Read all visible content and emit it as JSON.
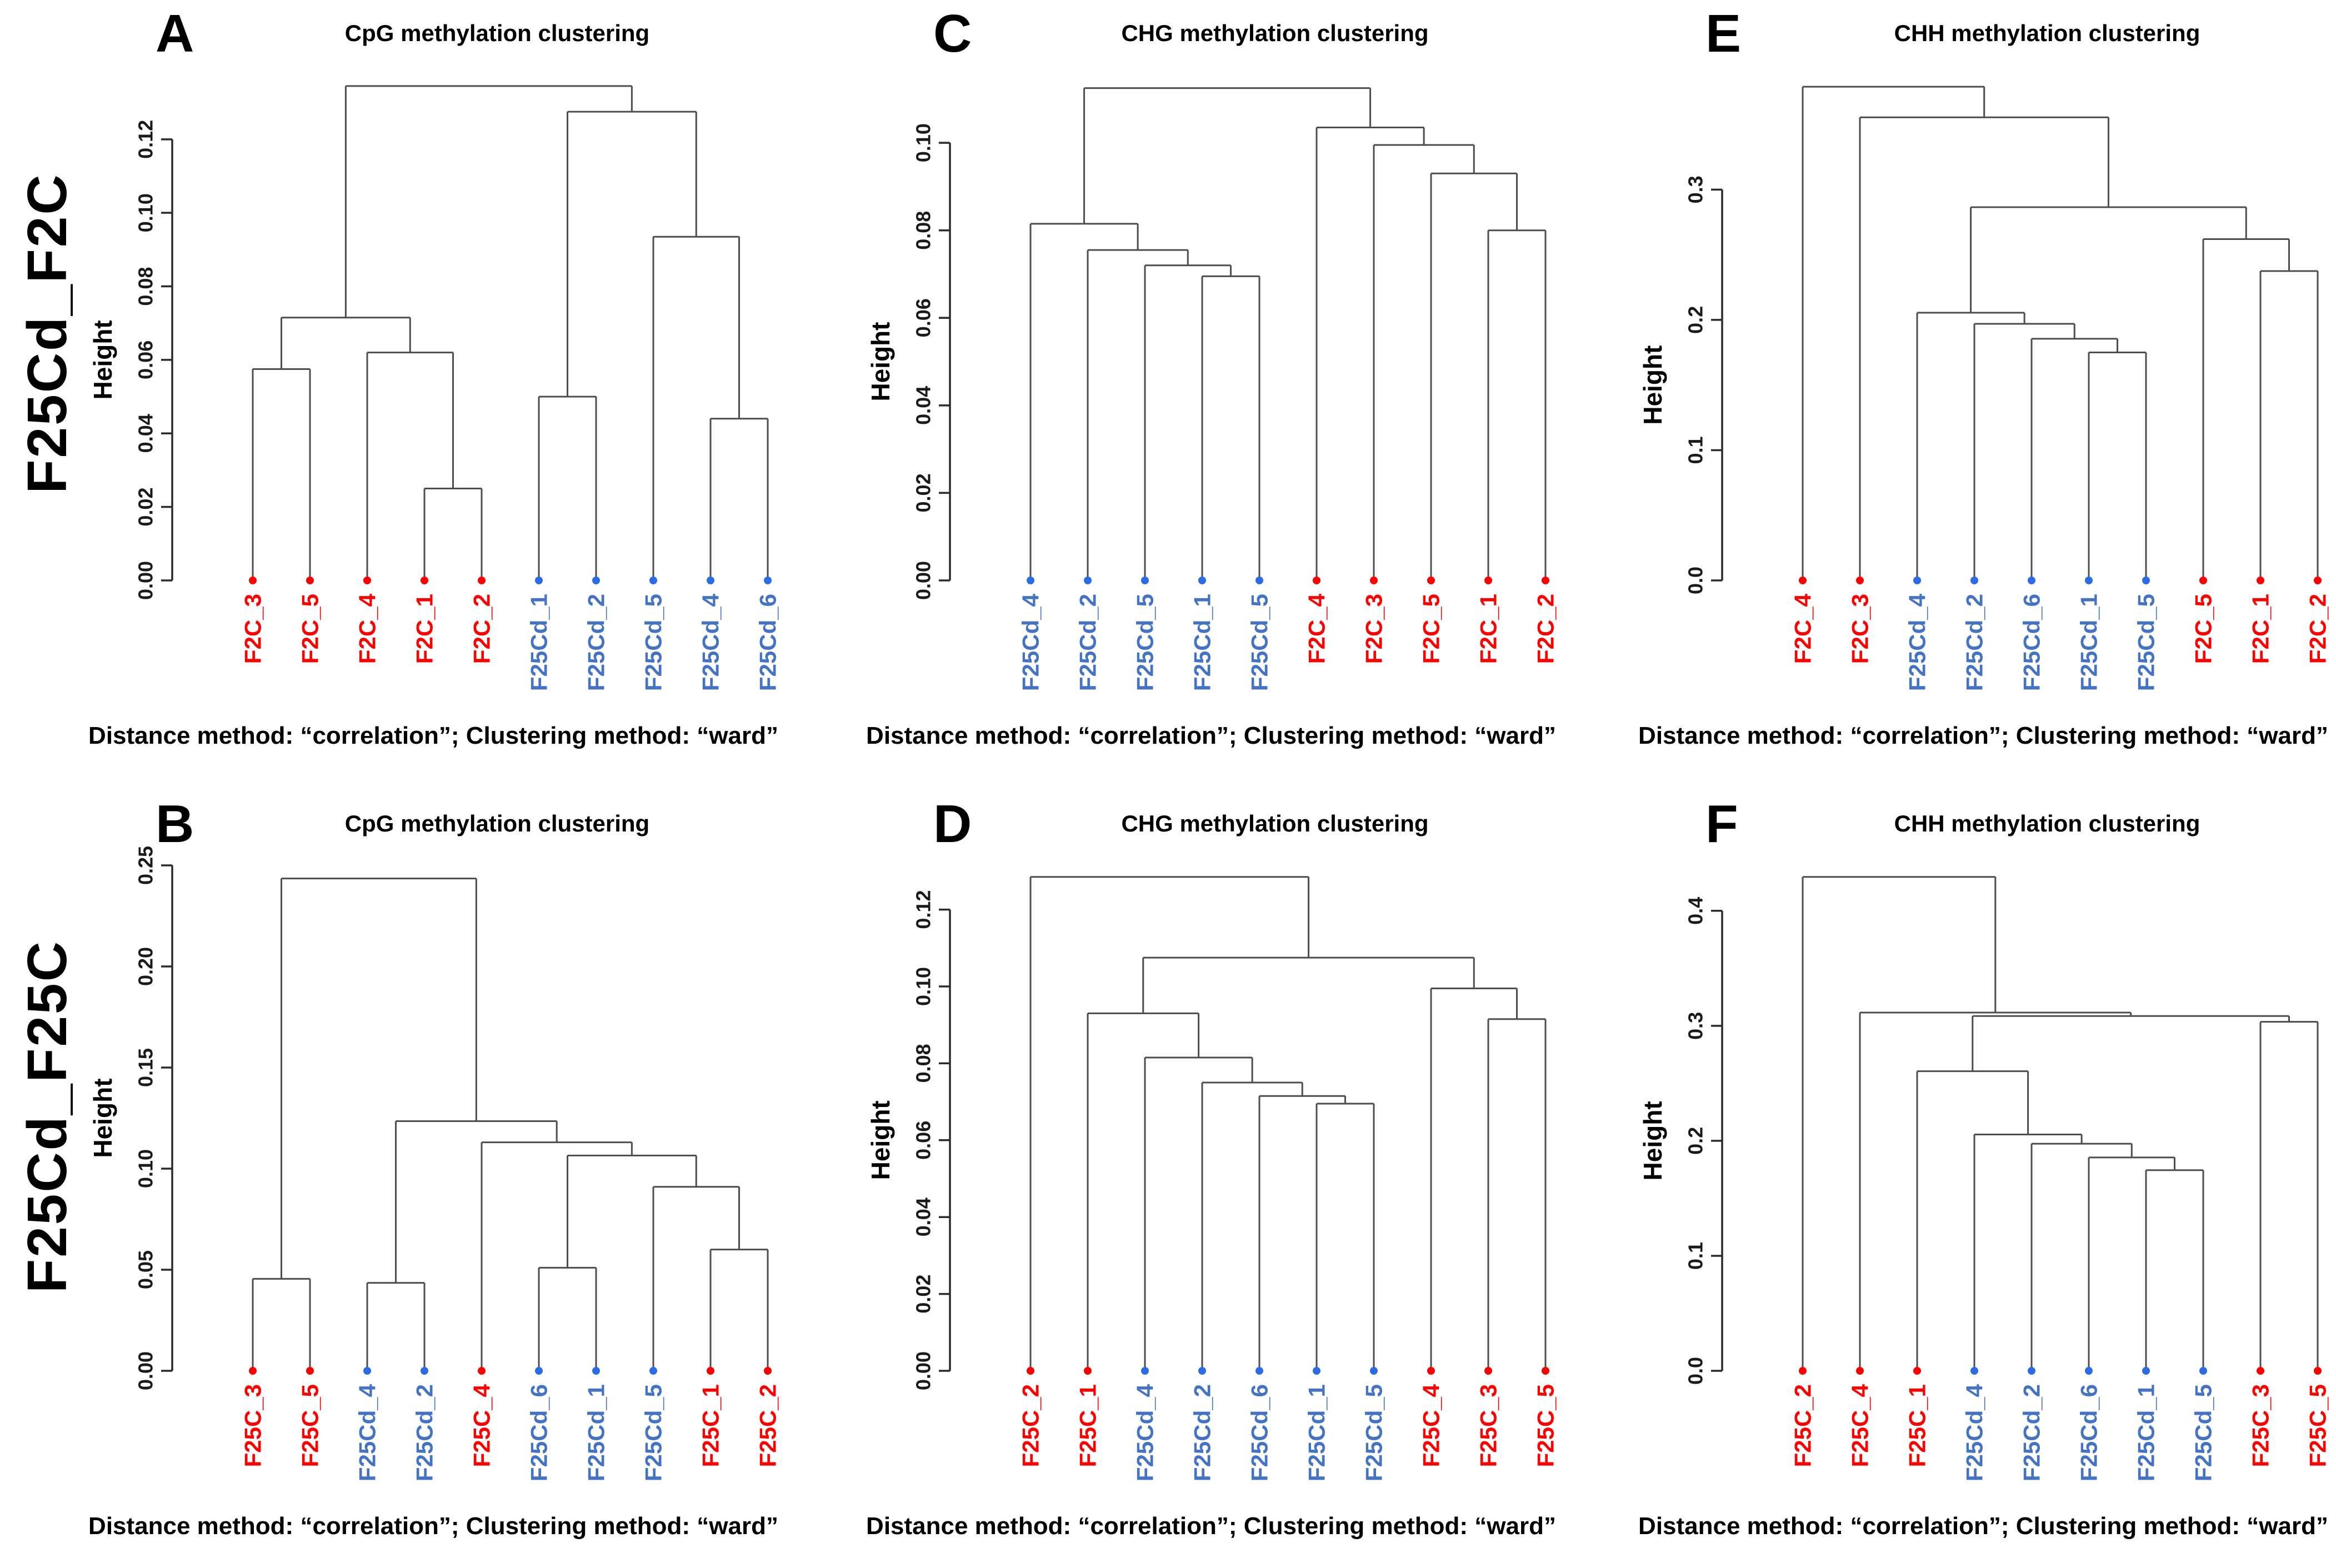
{
  "figure": {
    "rows": [
      {
        "label": "F25Cd_F2C"
      },
      {
        "label": "F25Cd_F25C"
      }
    ],
    "palette": {
      "red": {
        "text": "#FF0000",
        "dot": "#FF0000"
      },
      "blue": {
        "text": "#4472C4",
        "dot": "#2B6BE8"
      }
    },
    "line_color": "#4D4D4D",
    "axis_color": "#2B2B2B"
  },
  "chart_data": [
    {
      "type": "dendrogram",
      "panel_letter": "A",
      "title": "CpG methylation clustering",
      "caption": "Distance method: “correlation”; Clustering method: “ward”",
      "ylabel": "Height",
      "ymax": 0.1375,
      "yticks": [
        {
          "v": 0.0,
          "label": "0.00"
        },
        {
          "v": 0.02,
          "label": "0.02"
        },
        {
          "v": 0.04,
          "label": "0.04"
        },
        {
          "v": 0.06,
          "label": "0.06"
        },
        {
          "v": 0.08,
          "label": "0.08"
        },
        {
          "v": 0.1,
          "label": "0.10"
        },
        {
          "v": 0.12,
          "label": "0.12"
        }
      ],
      "leaves": [
        {
          "label": "F2C_3",
          "g": "red"
        },
        {
          "label": "F2C_5",
          "g": "red"
        },
        {
          "label": "F2C_4",
          "g": "red"
        },
        {
          "label": "F2C_1",
          "g": "red"
        },
        {
          "label": "F2C_2",
          "g": "red"
        },
        {
          "label": "F25Cd_1",
          "g": "blue"
        },
        {
          "label": "F25Cd_2",
          "g": "blue"
        },
        {
          "label": "F25Cd_5",
          "g": "blue"
        },
        {
          "label": "F25Cd_4",
          "g": "blue"
        },
        {
          "label": "F25Cd_6",
          "g": "blue"
        }
      ],
      "tree": {
        "h": 0.1345,
        "c": [
          {
            "h": 0.0715,
            "c": [
              {
                "h": 0.0575,
                "c": [
                  {
                    "i": 0
                  },
                  {
                    "i": 1
                  }
                ]
              },
              {
                "h": 0.062,
                "c": [
                  {
                    "i": 2
                  },
                  {
                    "h": 0.025,
                    "c": [
                      {
                        "i": 3
                      },
                      {
                        "i": 4
                      }
                    ]
                  }
                ]
              }
            ]
          },
          {
            "h": 0.1275,
            "c": [
              {
                "h": 0.05,
                "c": [
                  {
                    "i": 5
                  },
                  {
                    "i": 6
                  }
                ]
              },
              {
                "h": 0.0935,
                "c": [
                  {
                    "i": 7
                  },
                  {
                    "h": 0.044,
                    "c": [
                      {
                        "i": 8
                      },
                      {
                        "i": 9
                      }
                    ]
                  }
                ]
              }
            ]
          }
        ]
      }
    },
    {
      "type": "dendrogram",
      "panel_letter": "C",
      "title": "CHG methylation clustering",
      "caption": "Distance method: “correlation”; Clustering method: “ward”",
      "ylabel": "Height",
      "ymax": 0.1155,
      "yticks": [
        {
          "v": 0.0,
          "label": "0.00"
        },
        {
          "v": 0.02,
          "label": "0.02"
        },
        {
          "v": 0.04,
          "label": "0.04"
        },
        {
          "v": 0.06,
          "label": "0.06"
        },
        {
          "v": 0.08,
          "label": "0.08"
        },
        {
          "v": 0.1,
          "label": "0.10"
        }
      ],
      "leaves": [
        {
          "label": "F25Cd_4",
          "g": "blue"
        },
        {
          "label": "F25Cd_2",
          "g": "blue"
        },
        {
          "label": "F25Cd_5",
          "g": "blue"
        },
        {
          "label": "F25Cd_1",
          "g": "blue"
        },
        {
          "label": "F25Cd_5",
          "g": "blue"
        },
        {
          "label": "F2C_4",
          "g": "red"
        },
        {
          "label": "F2C_3",
          "g": "red"
        },
        {
          "label": "F2C_5",
          "g": "red"
        },
        {
          "label": "F2C_1",
          "g": "red"
        },
        {
          "label": "F2C_2",
          "g": "red"
        }
      ],
      "tree": {
        "h": 0.1125,
        "c": [
          {
            "h": 0.0815,
            "c": [
              {
                "i": 0
              },
              {
                "h": 0.0755,
                "c": [
                  {
                    "i": 1
                  },
                  {
                    "h": 0.072,
                    "c": [
                      {
                        "i": 2
                      },
                      {
                        "h": 0.0695,
                        "c": [
                          {
                            "i": 3
                          },
                          {
                            "i": 4
                          }
                        ]
                      }
                    ]
                  }
                ]
              }
            ]
          },
          {
            "h": 0.1035,
            "c": [
              {
                "i": 5
              },
              {
                "h": 0.0995,
                "c": [
                  {
                    "i": 6
                  },
                  {
                    "h": 0.093,
                    "c": [
                      {
                        "i": 7
                      },
                      {
                        "h": 0.08,
                        "c": [
                          {
                            "i": 8
                          },
                          {
                            "i": 9
                          }
                        ]
                      }
                    ]
                  }
                ]
              }
            ]
          }
        ]
      }
    },
    {
      "type": "dendrogram",
      "panel_letter": "E",
      "title": "CHH methylation clustering",
      "caption": "Distance method: “correlation”; Clustering method: “ward”",
      "ylabel": "Height",
      "ymax": 0.388,
      "yticks": [
        {
          "v": 0.0,
          "label": "0.0"
        },
        {
          "v": 0.1,
          "label": "0.1"
        },
        {
          "v": 0.2,
          "label": "0.2"
        },
        {
          "v": 0.3,
          "label": "0.3"
        }
      ],
      "leaves": [
        {
          "label": "F2C_4",
          "g": "red"
        },
        {
          "label": "F2C_3",
          "g": "red"
        },
        {
          "label": "F25Cd_4",
          "g": "blue"
        },
        {
          "label": "F25Cd_2",
          "g": "blue"
        },
        {
          "label": "F25Cd_6",
          "g": "blue"
        },
        {
          "label": "F25Cd_1",
          "g": "blue"
        },
        {
          "label": "F25Cd_5",
          "g": "blue"
        },
        {
          "label": "F2C_5",
          "g": "red"
        },
        {
          "label": "F2C_1",
          "g": "red"
        },
        {
          "label": "F2C_2",
          "g": "red"
        }
      ],
      "tree": {
        "h": 0.379,
        "c": [
          {
            "i": 0
          },
          {
            "h": 0.3555,
            "c": [
              {
                "i": 1
              },
              {
                "h": 0.2865,
                "c": [
                  {
                    "h": 0.2055,
                    "c": [
                      {
                        "i": 2
                      },
                      {
                        "h": 0.197,
                        "c": [
                          {
                            "i": 3
                          },
                          {
                            "h": 0.1855,
                            "c": [
                              {
                                "i": 4
                              },
                              {
                                "h": 0.175,
                                "c": [
                                  {
                                    "i": 5
                                  },
                                  {
                                    "i": 6
                                  }
                                ]
                              }
                            ]
                          }
                        ]
                      }
                    ]
                  },
                  {
                    "h": 0.262,
                    "c": [
                      {
                        "i": 7
                      },
                      {
                        "h": 0.2375,
                        "c": [
                          {
                            "i": 8
                          },
                          {
                            "i": 9
                          }
                        ]
                      }
                    ]
                  }
                ]
              }
            ]
          }
        ]
      }
    },
    {
      "type": "dendrogram",
      "panel_letter": "B",
      "title": "CpG methylation clustering",
      "caption": "Distance method: “correlation”; Clustering method: “ward”",
      "ylabel": "Height",
      "ymax": 0.25,
      "yticks": [
        {
          "v": 0.0,
          "label": "0.00"
        },
        {
          "v": 0.05,
          "label": "0.05"
        },
        {
          "v": 0.1,
          "label": "0.10"
        },
        {
          "v": 0.15,
          "label": "0.15"
        },
        {
          "v": 0.2,
          "label": "0.20"
        },
        {
          "v": 0.25,
          "label": "0.25"
        }
      ],
      "leaves": [
        {
          "label": "F25C_3",
          "g": "red"
        },
        {
          "label": "F25C_5",
          "g": "red"
        },
        {
          "label": "F25Cd_4",
          "g": "blue"
        },
        {
          "label": "F25Cd_2",
          "g": "blue"
        },
        {
          "label": "F25C_4",
          "g": "red"
        },
        {
          "label": "F25Cd_6",
          "g": "blue"
        },
        {
          "label": "F25Cd_1",
          "g": "blue"
        },
        {
          "label": "F25Cd_5",
          "g": "blue"
        },
        {
          "label": "F25C_1",
          "g": "red"
        },
        {
          "label": "F25C_2",
          "g": "red"
        }
      ],
      "tree": {
        "h": 0.2435,
        "c": [
          {
            "h": 0.0455,
            "c": [
              {
                "i": 0
              },
              {
                "i": 1
              }
            ]
          },
          {
            "h": 0.1235,
            "c": [
              {
                "h": 0.0435,
                "c": [
                  {
                    "i": 2
                  },
                  {
                    "i": 3
                  }
                ]
              },
              {
                "h": 0.113,
                "c": [
                  {
                    "i": 4
                  },
                  {
                    "h": 0.1065,
                    "c": [
                      {
                        "h": 0.051,
                        "c": [
                          {
                            "i": 5
                          },
                          {
                            "i": 6
                          }
                        ]
                      },
                      {
                        "h": 0.091,
                        "c": [
                          {
                            "i": 7
                          },
                          {
                            "h": 0.06,
                            "c": [
                              {
                                "i": 8
                              },
                              {
                                "i": 9
                              }
                            ]
                          }
                        ]
                      }
                    ]
                  }
                ]
              }
            ]
          }
        ]
      }
    },
    {
      "type": "dendrogram",
      "panel_letter": "D",
      "title": "CHG methylation clustering",
      "caption": "Distance method: “correlation”; Clustering method: “ward”",
      "ylabel": "Height",
      "ymax": 0.1315,
      "yticks": [
        {
          "v": 0.0,
          "label": "0.00"
        },
        {
          "v": 0.02,
          "label": "0.02"
        },
        {
          "v": 0.04,
          "label": "0.04"
        },
        {
          "v": 0.06,
          "label": "0.06"
        },
        {
          "v": 0.08,
          "label": "0.08"
        },
        {
          "v": 0.1,
          "label": "0.10"
        },
        {
          "v": 0.12,
          "label": "0.12"
        }
      ],
      "leaves": [
        {
          "label": "F25C_2",
          "g": "red"
        },
        {
          "label": "F25C_1",
          "g": "red"
        },
        {
          "label": "F25Cd_4",
          "g": "blue"
        },
        {
          "label": "F25Cd_2",
          "g": "blue"
        },
        {
          "label": "F25Cd_6",
          "g": "blue"
        },
        {
          "label": "F25Cd_1",
          "g": "blue"
        },
        {
          "label": "F25Cd_5",
          "g": "blue"
        },
        {
          "label": "F25C_4",
          "g": "red"
        },
        {
          "label": "F25C_3",
          "g": "red"
        },
        {
          "label": "F25C_5",
          "g": "red"
        }
      ],
      "tree": {
        "h": 0.1285,
        "c": [
          {
            "i": 0
          },
          {
            "h": 0.1075,
            "c": [
              {
                "h": 0.093,
                "c": [
                  {
                    "i": 1
                  },
                  {
                    "h": 0.0815,
                    "c": [
                      {
                        "i": 2
                      },
                      {
                        "h": 0.075,
                        "c": [
                          {
                            "i": 3
                          },
                          {
                            "h": 0.0715,
                            "c": [
                              {
                                "i": 4
                              },
                              {
                                "h": 0.0695,
                                "c": [
                                  {
                                    "i": 5
                                  },
                                  {
                                    "i": 6
                                  }
                                ]
                              }
                            ]
                          }
                        ]
                      }
                    ]
                  }
                ]
              },
              {
                "h": 0.0995,
                "c": [
                  {
                    "i": 7
                  },
                  {
                    "h": 0.0915,
                    "c": [
                      {
                        "i": 8
                      },
                      {
                        "i": 9
                      }
                    ]
                  }
                ]
              }
            ]
          }
        ]
      }
    },
    {
      "type": "dendrogram",
      "panel_letter": "F",
      "title": "CHH methylation clustering",
      "caption": "Distance method: “correlation”; Clustering method: “ward”",
      "ylabel": "Height",
      "ymax": 0.4395,
      "yticks": [
        {
          "v": 0.0,
          "label": "0.0"
        },
        {
          "v": 0.1,
          "label": "0.1"
        },
        {
          "v": 0.2,
          "label": "0.2"
        },
        {
          "v": 0.3,
          "label": "0.3"
        },
        {
          "v": 0.4,
          "label": "0.4"
        }
      ],
      "leaves": [
        {
          "label": "F25C_2",
          "g": "red"
        },
        {
          "label": "F25C_4",
          "g": "red"
        },
        {
          "label": "F25C_1",
          "g": "red"
        },
        {
          "label": "F25Cd_4",
          "g": "blue"
        },
        {
          "label": "F25Cd_2",
          "g": "blue"
        },
        {
          "label": "F25Cd_6",
          "g": "blue"
        },
        {
          "label": "F25Cd_1",
          "g": "blue"
        },
        {
          "label": "F25Cd_5",
          "g": "blue"
        },
        {
          "label": "F25C_3",
          "g": "red"
        },
        {
          "label": "F25C_5",
          "g": "red"
        }
      ],
      "tree": {
        "h": 0.4295,
        "c": [
          {
            "i": 0
          },
          {
            "h": 0.3115,
            "c": [
              {
                "i": 1
              },
              {
                "h": 0.3085,
                "c": [
                  {
                    "h": 0.2605,
                    "c": [
                      {
                        "i": 2
                      },
                      {
                        "h": 0.2055,
                        "c": [
                          {
                            "i": 3
                          },
                          {
                            "h": 0.1975,
                            "c": [
                              {
                                "i": 4
                              },
                              {
                                "h": 0.1855,
                                "c": [
                                  {
                                    "i": 5
                                  },
                                  {
                                    "h": 0.1745,
                                    "c": [
                                      {
                                        "i": 6
                                      },
                                      {
                                        "i": 7
                                      }
                                    ]
                                  }
                                ]
                              }
                            ]
                          }
                        ]
                      }
                    ]
                  },
                  {
                    "h": 0.3035,
                    "c": [
                      {
                        "i": 8
                      },
                      {
                        "i": 9
                      }
                    ]
                  }
                ]
              }
            ]
          }
        ]
      }
    }
  ]
}
